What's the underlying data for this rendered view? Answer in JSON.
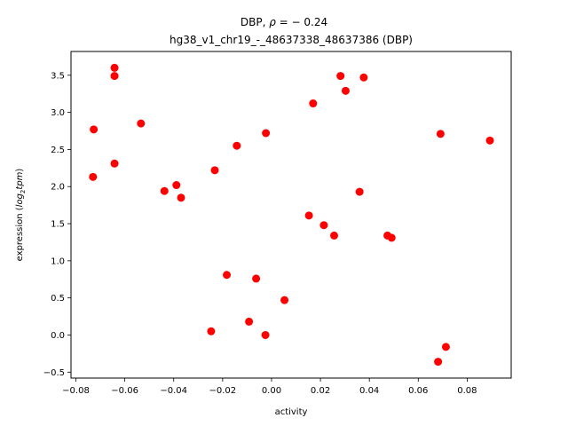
{
  "chart_data": {
    "type": "scatter",
    "title_line1_prefix": "DBP, ",
    "title_line1_rho": "ρ",
    "title_line1_suffix": " = − 0.24",
    "title_line2": "hg38_v1_chr19_-_48637338_48637386 (DBP)",
    "xlabel": "activity",
    "ylabel_prefix": "expression (",
    "ylabel_italic": "log",
    "ylabel_sub": "2",
    "ylabel_italic2": "tpm",
    "ylabel_suffix": ")",
    "xlim": [
      -0.082,
      0.098
    ],
    "ylim": [
      -0.58,
      3.82
    ],
    "xticks": [
      -0.08,
      -0.06,
      -0.04,
      -0.02,
      0.0,
      0.02,
      0.04,
      0.06,
      0.08
    ],
    "xtick_labels": [
      "−0.08",
      "−0.06",
      "−0.04",
      "−0.02",
      "0.00",
      "0.02",
      "0.04",
      "0.06",
      "0.08"
    ],
    "yticks": [
      -0.5,
      0.0,
      0.5,
      1.0,
      1.5,
      2.0,
      2.5,
      3.0,
      3.5
    ],
    "ytick_labels": [
      "−0.5",
      "0.0",
      "0.5",
      "1.0",
      "1.5",
      "2.0",
      "2.5",
      "3.0",
      "3.5"
    ],
    "marker_color": "#ff0000",
    "points": [
      {
        "x": -0.0727,
        "y": 2.77
      },
      {
        "x": -0.073,
        "y": 2.13
      },
      {
        "x": -0.0642,
        "y": 3.6
      },
      {
        "x": -0.0642,
        "y": 3.49
      },
      {
        "x": -0.0642,
        "y": 2.31
      },
      {
        "x": -0.0534,
        "y": 2.85
      },
      {
        "x": -0.0438,
        "y": 1.94
      },
      {
        "x": -0.0389,
        "y": 2.02
      },
      {
        "x": -0.037,
        "y": 1.85
      },
      {
        "x": -0.0232,
        "y": 2.22
      },
      {
        "x": -0.0142,
        "y": 2.55
      },
      {
        "x": -0.0183,
        "y": 0.81
      },
      {
        "x": -0.0247,
        "y": 0.05
      },
      {
        "x": -0.0092,
        "y": 0.18
      },
      {
        "x": -0.0063,
        "y": 0.76
      },
      {
        "x": -0.0023,
        "y": 2.72
      },
      {
        "x": -0.0025,
        "y": 0.0
      },
      {
        "x": 0.0053,
        "y": 0.47
      },
      {
        "x": 0.017,
        "y": 3.12
      },
      {
        "x": 0.0153,
        "y": 1.61
      },
      {
        "x": 0.0214,
        "y": 1.48
      },
      {
        "x": 0.0256,
        "y": 1.34
      },
      {
        "x": 0.0282,
        "y": 3.49
      },
      {
        "x": 0.0303,
        "y": 3.29
      },
      {
        "x": 0.0377,
        "y": 3.47
      },
      {
        "x": 0.036,
        "y": 1.93
      },
      {
        "x": 0.0474,
        "y": 1.34
      },
      {
        "x": 0.0491,
        "y": 1.31
      },
      {
        "x": 0.0691,
        "y": 2.71
      },
      {
        "x": 0.0713,
        "y": -0.16
      },
      {
        "x": 0.0681,
        "y": -0.36
      },
      {
        "x": 0.0893,
        "y": 2.62
      }
    ]
  }
}
